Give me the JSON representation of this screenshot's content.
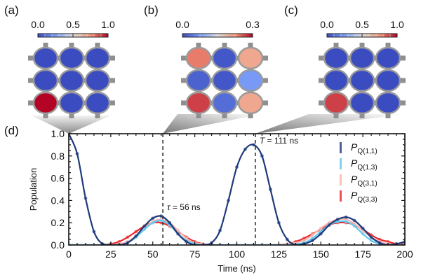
{
  "panels": [
    {
      "label": "(a)",
      "colorbar": {
        "ticks": [
          "0.0",
          "0.5",
          "1.0"
        ],
        "min": 0.0,
        "max": 1.0,
        "segments": 10
      },
      "grid_values": [
        [
          0.0,
          0.0,
          0.0
        ],
        [
          0.0,
          0.0,
          0.0
        ],
        [
          1.0,
          0.0,
          0.0
        ]
      ]
    },
    {
      "label": "(b)",
      "colorbar": {
        "ticks": [
          "0.0",
          "0.3"
        ],
        "min": 0.0,
        "max": 0.3,
        "segments": 4
      },
      "grid_values": [
        [
          0.24,
          0.01,
          0.21
        ],
        [
          0.02,
          0.01,
          0.07
        ],
        [
          0.27,
          0.03,
          0.21
        ]
      ]
    },
    {
      "label": "(c)",
      "colorbar": {
        "ticks": [
          "0.0",
          "0.5",
          "1.0"
        ],
        "min": 0.0,
        "max": 1.0,
        "segments": 10
      },
      "grid_values": [
        [
          0.0,
          0.0,
          0.0
        ],
        [
          0.0,
          0.0,
          0.0
        ],
        [
          0.9,
          0.0,
          0.0
        ]
      ]
    }
  ],
  "panel_d_label": "(d)",
  "chart_data": {
    "type": "line",
    "title": "",
    "xlabel": "Time (ns)",
    "ylabel": "Population",
    "xlim": [
      0,
      200
    ],
    "ylim": [
      0,
      1.0
    ],
    "xticks": [
      0,
      25,
      50,
      75,
      100,
      125,
      150,
      175,
      200
    ],
    "yticks": [
      0.0,
      0.2,
      0.4,
      0.6,
      0.8,
      1.0
    ],
    "xtick_labels": [
      "0",
      "25",
      "50",
      "75",
      "100",
      "125",
      "150",
      "175",
      "200"
    ],
    "ytick_labels": [
      "0.0",
      "0.2",
      "0.4",
      "0.6",
      "0.8",
      "1.0"
    ],
    "grid": false,
    "legend_position": "top-right",
    "annotations": [
      {
        "text_prefix": "τ",
        "text": " = 56 ns",
        "x": 56,
        "kind": "vline"
      },
      {
        "text_prefix": "T",
        "text": " = 111 ns",
        "x": 111,
        "kind": "vline"
      }
    ],
    "series": [
      {
        "name": "P_Q(1,1)",
        "label_main": "P",
        "label_sub": "Q(1,1)",
        "color": "#1f3a7a",
        "marker_color": "#4a63a0",
        "x": [
          0,
          5,
          10,
          15,
          20,
          25,
          30,
          35,
          40,
          45,
          50,
          55,
          60,
          65,
          70,
          75,
          80,
          85,
          90,
          95,
          100,
          105,
          110,
          115,
          120,
          125,
          130,
          135,
          140,
          145,
          150,
          155,
          160,
          165,
          170,
          175,
          180,
          185,
          190,
          195,
          200
        ],
        "y": [
          1.0,
          0.82,
          0.42,
          0.12,
          0.01,
          0.0,
          0.0,
          0.02,
          0.08,
          0.17,
          0.24,
          0.26,
          0.2,
          0.1,
          0.03,
          0.0,
          0.0,
          0.02,
          0.13,
          0.4,
          0.7,
          0.86,
          0.9,
          0.8,
          0.5,
          0.2,
          0.05,
          0.0,
          0.01,
          0.04,
          0.1,
          0.18,
          0.23,
          0.25,
          0.22,
          0.15,
          0.07,
          0.02,
          0.0,
          0.01,
          0.03
        ]
      },
      {
        "name": "P_Q(1,3)",
        "label_main": "P",
        "label_sub": "Q(1,3)",
        "color": "#5fc8ee",
        "marker_color": "#9adbf4",
        "x": [
          0,
          10,
          20,
          30,
          35,
          40,
          45,
          50,
          55,
          60,
          65,
          70,
          75,
          80,
          90,
          100,
          110,
          120,
          130,
          140,
          145,
          150,
          155,
          160,
          165,
          170,
          175,
          180,
          185,
          190,
          200
        ],
        "y": [
          0.0,
          0.0,
          0.0,
          0.0,
          0.02,
          0.07,
          0.14,
          0.2,
          0.22,
          0.18,
          0.1,
          0.04,
          0.01,
          0.0,
          0.0,
          0.0,
          0.0,
          0.0,
          0.0,
          0.02,
          0.06,
          0.12,
          0.18,
          0.21,
          0.21,
          0.17,
          0.1,
          0.04,
          0.01,
          0.0,
          0.0
        ]
      },
      {
        "name": "P_Q(3,1)",
        "label_main": "P",
        "label_sub": "Q(3,1)",
        "color": "#f4b4ad",
        "marker_color": "#f7c6c0",
        "x": [
          0,
          10,
          20,
          30,
          35,
          40,
          45,
          50,
          55,
          60,
          65,
          70,
          75,
          80,
          90,
          100,
          110,
          120,
          130,
          140,
          145,
          150,
          155,
          160,
          165,
          170,
          175,
          180,
          185,
          190,
          200
        ],
        "y": [
          0.0,
          0.0,
          0.0,
          0.01,
          0.03,
          0.08,
          0.15,
          0.21,
          0.23,
          0.2,
          0.13,
          0.06,
          0.02,
          0.01,
          0.0,
          0.0,
          0.0,
          0.0,
          0.01,
          0.04,
          0.09,
          0.15,
          0.2,
          0.23,
          0.23,
          0.19,
          0.13,
          0.07,
          0.03,
          0.01,
          0.0
        ]
      },
      {
        "name": "P_Q(3,3)",
        "label_main": "P",
        "label_sub": "Q(3,3)",
        "color": "#e8282c",
        "marker_color": "#ef6a6c",
        "x": [
          0,
          10,
          20,
          25,
          30,
          35,
          40,
          45,
          50,
          55,
          60,
          65,
          70,
          75,
          80,
          85,
          90,
          100,
          110,
          120,
          130,
          135,
          140,
          145,
          150,
          155,
          160,
          165,
          170,
          175,
          180,
          185,
          190,
          195,
          200
        ],
        "y": [
          0.0,
          0.0,
          0.0,
          0.01,
          0.03,
          0.07,
          0.12,
          0.17,
          0.2,
          0.2,
          0.17,
          0.12,
          0.07,
          0.03,
          0.01,
          0.0,
          0.0,
          0.0,
          0.0,
          0.0,
          0.01,
          0.03,
          0.06,
          0.1,
          0.14,
          0.18,
          0.2,
          0.2,
          0.18,
          0.14,
          0.09,
          0.05,
          0.03,
          0.01,
          0.01
        ]
      }
    ]
  }
}
